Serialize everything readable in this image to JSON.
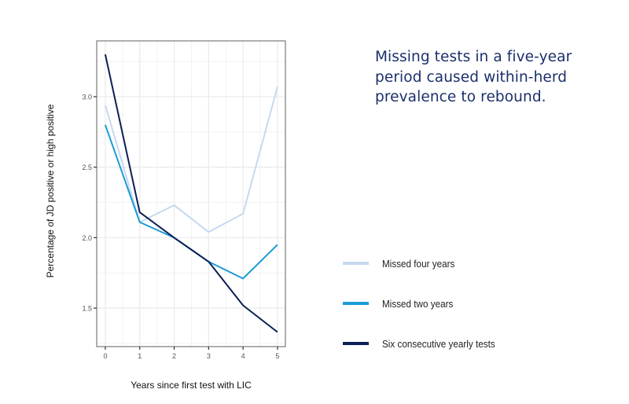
{
  "headline": "Missing tests in a five-year period caused within-herd prevalence to rebound.",
  "chart_data": {
    "type": "line",
    "title": "",
    "xlabel": "Years since first test with LIC",
    "ylabel": "Percentage of JD positive or high positive",
    "x": [
      0,
      1,
      2,
      3,
      4,
      5
    ],
    "x_ticks": [
      "0",
      "1",
      "2",
      "3",
      "4",
      "5"
    ],
    "y_ticks": [
      "1.5",
      "2.0",
      "2.5",
      "3.0"
    ],
    "y_tick_values": [
      1.5,
      2.0,
      2.5,
      3.0
    ],
    "xlim": [
      -0.25,
      5.23
    ],
    "ylim": [
      1.227,
      3.396
    ],
    "grid": true,
    "legend_position": "right",
    "series": [
      {
        "name": "Missed four years",
        "color": "#c6d9ef",
        "values": [
          2.94,
          2.11,
          2.23,
          2.04,
          2.17,
          3.07
        ]
      },
      {
        "name": "Missed two years",
        "color": "#1a9bd7",
        "values": [
          2.8,
          2.11,
          2.0,
          1.83,
          1.71,
          1.95
        ]
      },
      {
        "name": "Six consecutive yearly tests",
        "color": "#0b1f55",
        "values": [
          3.3,
          2.18,
          2.0,
          1.83,
          1.52,
          1.33
        ]
      }
    ]
  }
}
